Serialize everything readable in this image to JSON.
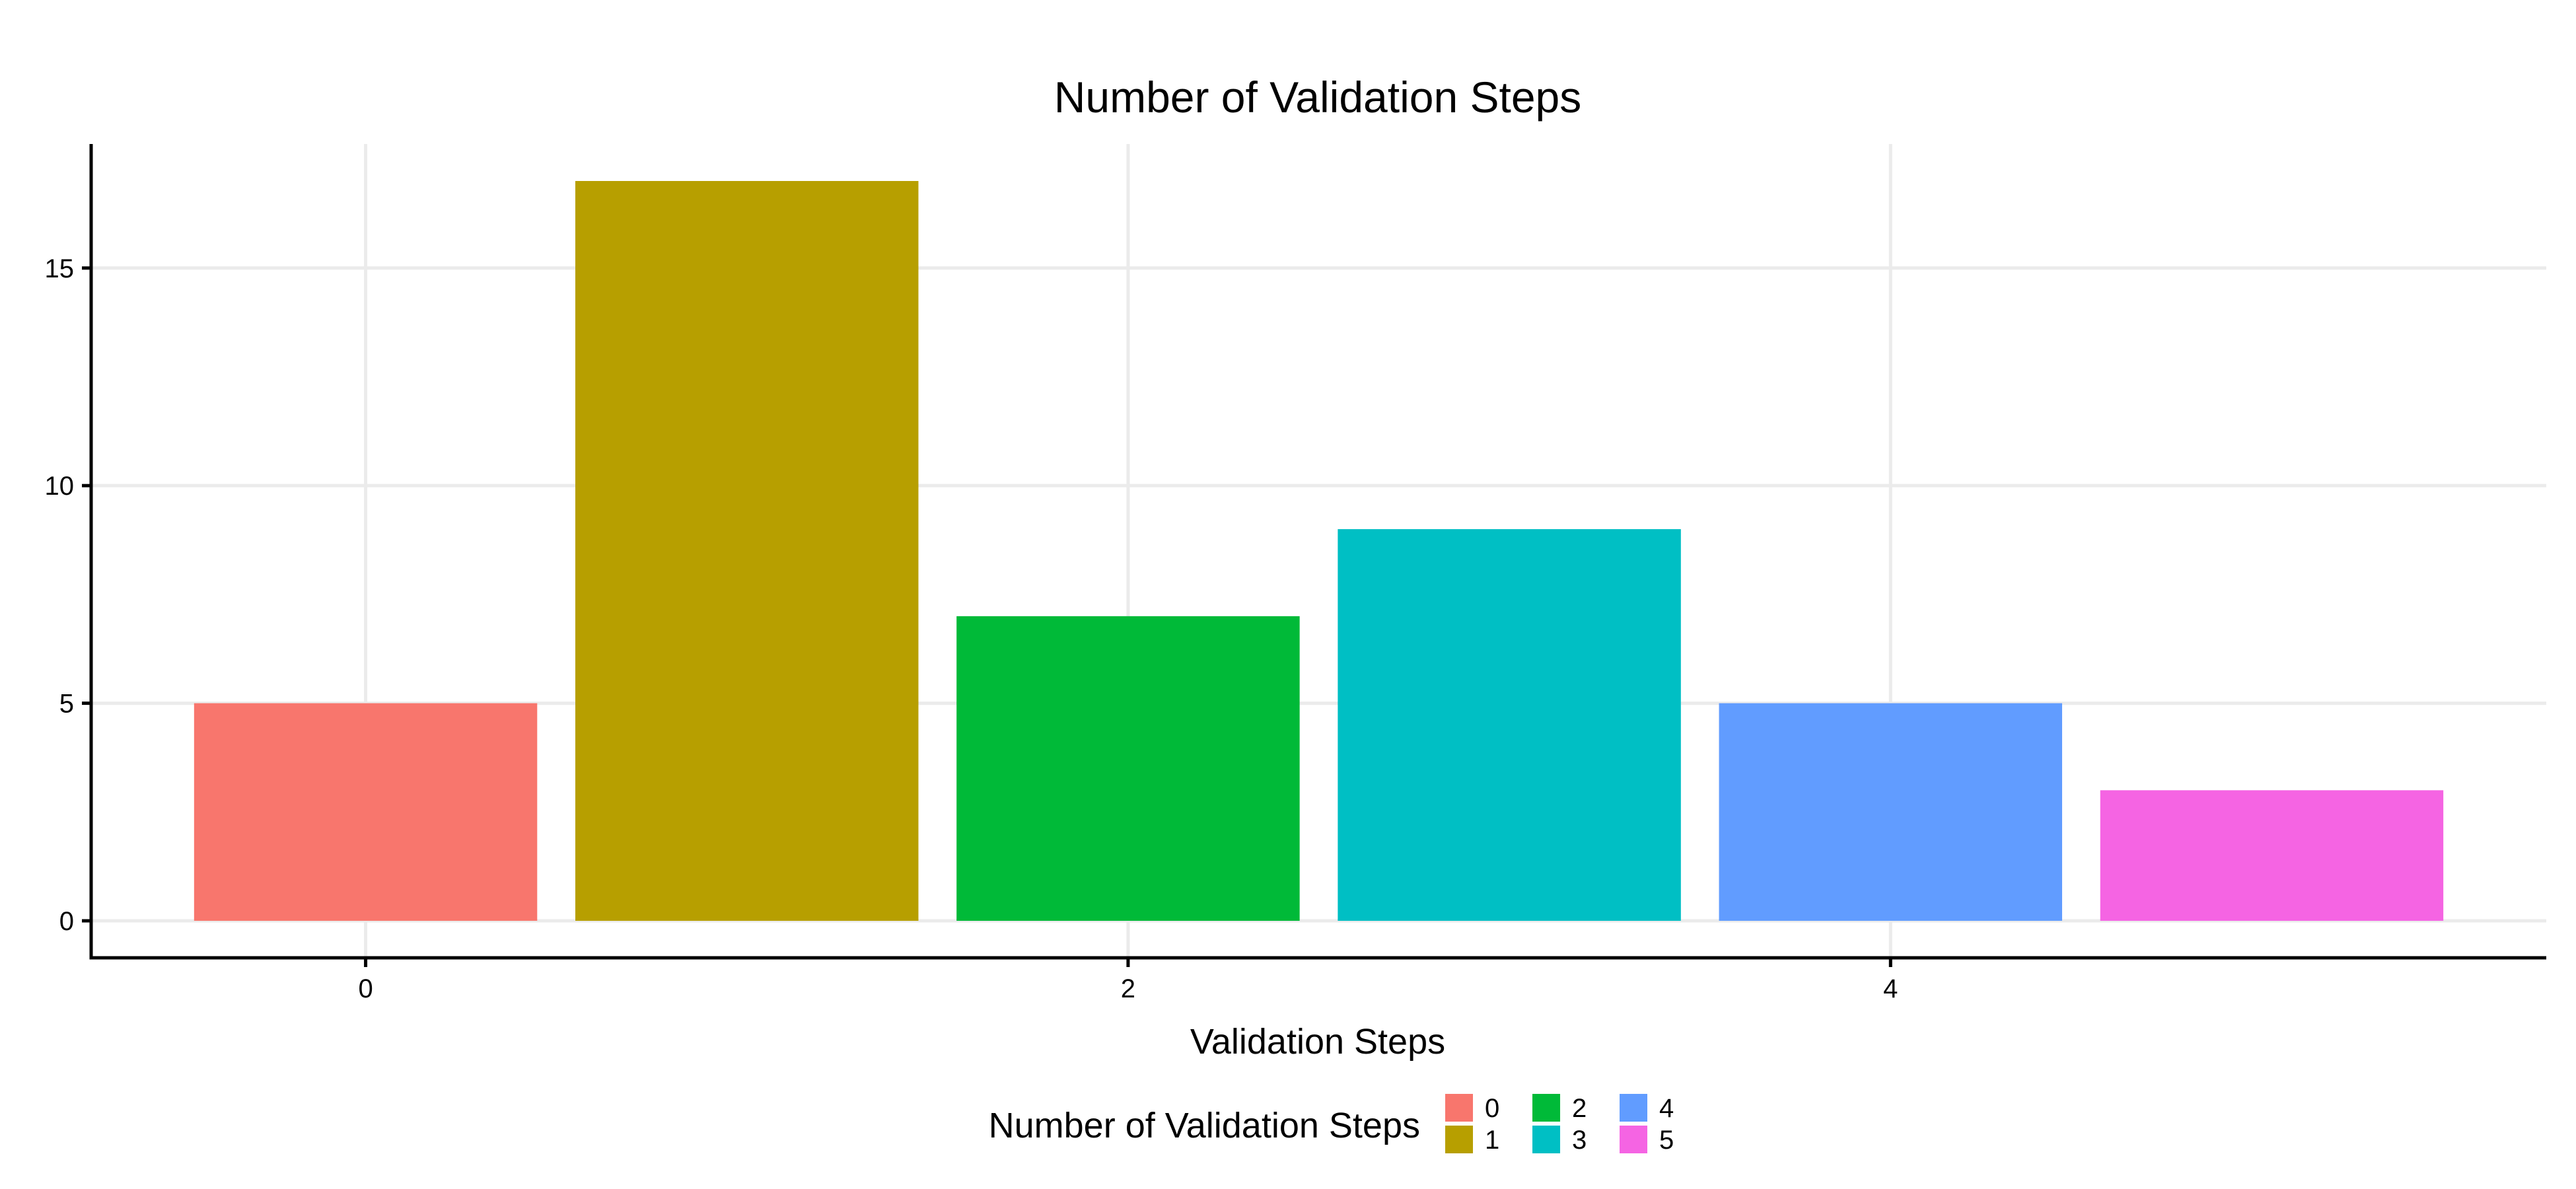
{
  "chart_data": {
    "type": "bar",
    "title": "Number of Validation Steps",
    "xlabel": "Validation Steps",
    "ylabel": "",
    "x": [
      0,
      1,
      2,
      3,
      4,
      5
    ],
    "values": [
      5,
      17,
      7,
      9,
      5,
      3
    ],
    "colors": [
      "#F8766D",
      "#B79F00",
      "#00BA38",
      "#00BFC4",
      "#619CFF",
      "#F564E3"
    ],
    "xlim": [
      -0.72,
      5.72
    ],
    "ylim": [
      -0.85,
      17.85
    ],
    "x_ticks": [
      0,
      2,
      4
    ],
    "x_tick_labels": [
      "0",
      "2",
      "4"
    ],
    "y_ticks": [
      0,
      5,
      10,
      15
    ],
    "y_tick_labels": [
      "0",
      "5",
      "10",
      "15"
    ],
    "grid": true,
    "legend": {
      "title": "Number of Validation Steps",
      "position": "bottom",
      "items": [
        {
          "label": "0",
          "color": "#F8766D"
        },
        {
          "label": "1",
          "color": "#B79F00"
        },
        {
          "label": "2",
          "color": "#00BA38"
        },
        {
          "label": "3",
          "color": "#00BFC4"
        },
        {
          "label": "4",
          "color": "#619CFF"
        },
        {
          "label": "5",
          "color": "#F564E3"
        }
      ]
    }
  }
}
